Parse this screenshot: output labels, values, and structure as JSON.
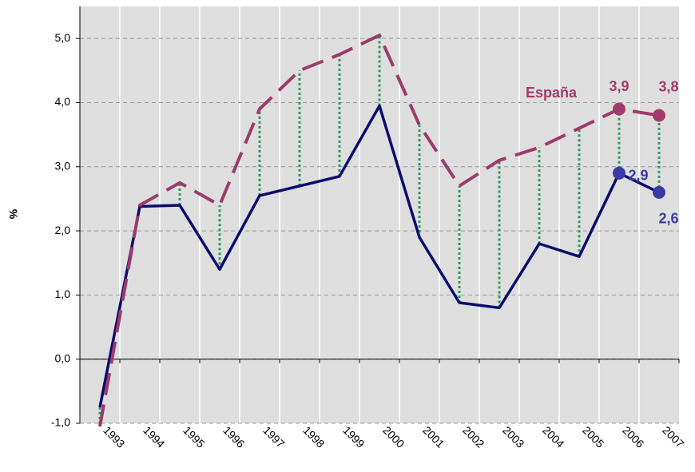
{
  "chart_data": {
    "type": "line",
    "y_label": "%",
    "categories": [
      "1993",
      "1994",
      "1995",
      "1996",
      "1997",
      "1998",
      "1999",
      "2000",
      "2001",
      "2002",
      "2003",
      "2004",
      "2005",
      "2006",
      "2007"
    ],
    "series": [
      {
        "color": "#0b0b6e",
        "values": [
          -0.75,
          2.38,
          2.4,
          1.4,
          2.55,
          2.7,
          2.85,
          3.95,
          1.9,
          0.88,
          0.8,
          1.8,
          1.6,
          2.9,
          2.6
        ],
        "value_labels": [
          null,
          null,
          null,
          null,
          null,
          null,
          null,
          null,
          null,
          null,
          null,
          null,
          null,
          "2,9",
          "2,6"
        ],
        "marker_color": "#3b3ba3"
      },
      {
        "name": "España",
        "color": "#9c3a6b",
        "values": [
          -1.05,
          2.4,
          2.75,
          2.4,
          3.9,
          4.5,
          4.75,
          5.05,
          3.65,
          2.7,
          3.1,
          3.3,
          3.6,
          3.9,
          3.8
        ],
        "value_labels": [
          null,
          null,
          null,
          null,
          null,
          null,
          null,
          null,
          null,
          null,
          null,
          null,
          null,
          "3,9",
          "3,8"
        ],
        "marker_color": "#a33a6b"
      }
    ],
    "connector_color": "#2e9a5a",
    "ylim": [
      -1,
      5.5
    ],
    "yticks": [
      {
        "value": -1,
        "label": "-1,0"
      },
      {
        "value": 0,
        "label": "0,0"
      },
      {
        "value": 1,
        "label": "1,0"
      },
      {
        "value": 2,
        "label": "2,0"
      },
      {
        "value": 3,
        "label": "3,0"
      },
      {
        "value": 4,
        "label": "4,0"
      },
      {
        "value": 5,
        "label": "5,0"
      }
    ],
    "grid": true
  }
}
